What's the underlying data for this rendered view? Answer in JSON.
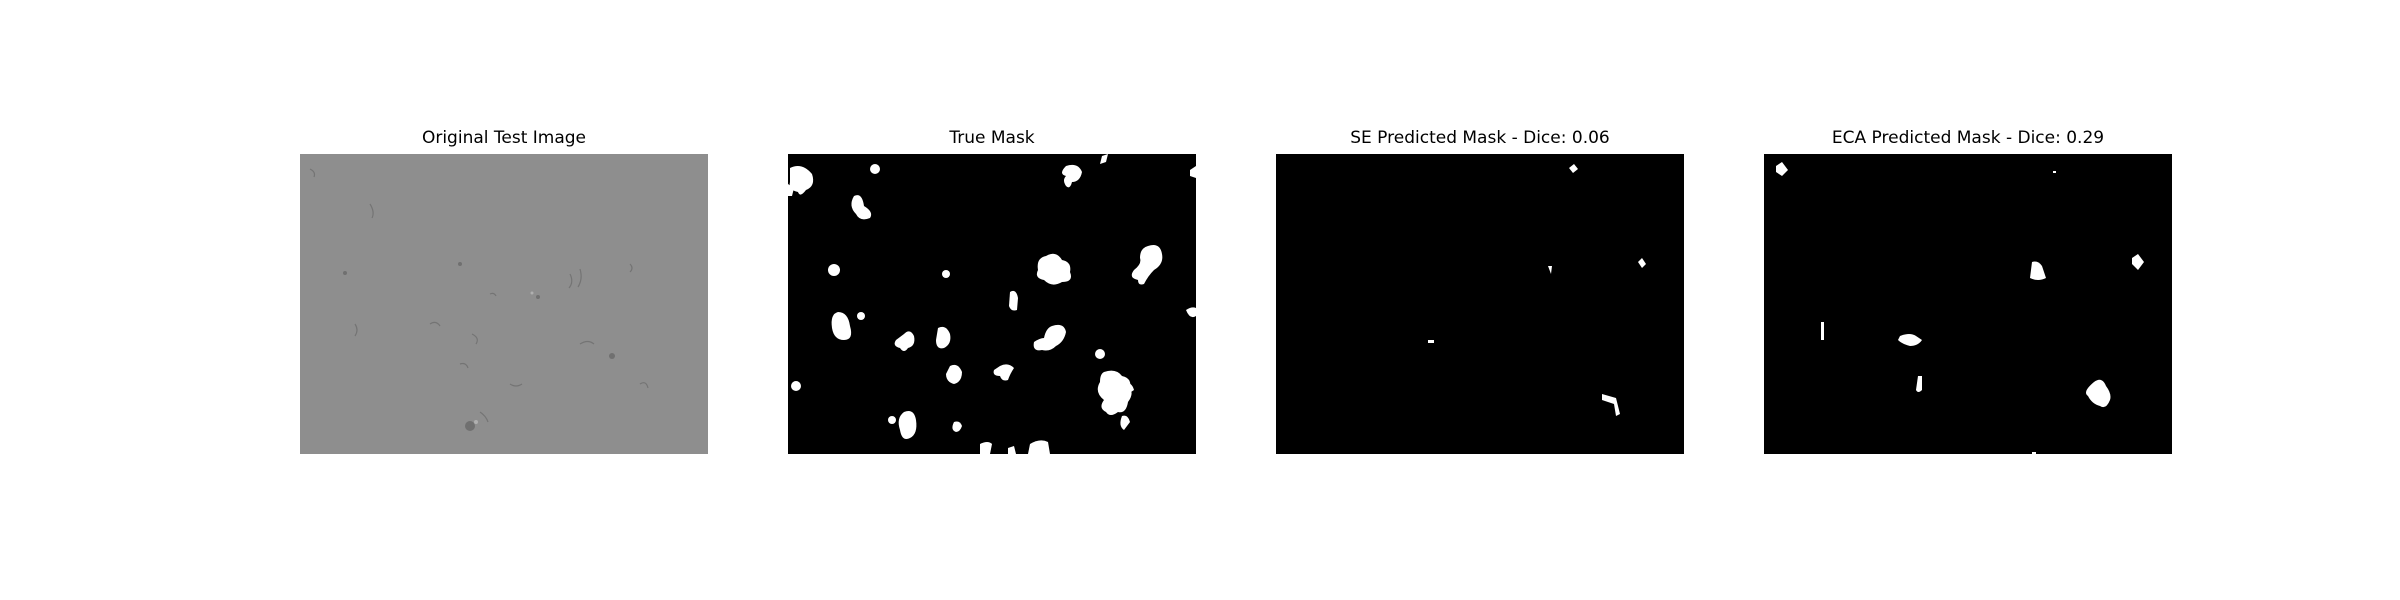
{
  "figure": {
    "panels": [
      {
        "title": "Original Test Image"
      },
      {
        "title": "True Mask"
      },
      {
        "title": "SE Predicted Mask - Dice: 0.06"
      },
      {
        "title": "ECA Predicted Mask - Dice: 0.29"
      }
    ]
  },
  "colors": {
    "background": "#ffffff",
    "micrograph_gray": "#8e8e8e",
    "mask_background": "#000000",
    "mask_foreground": "#ffffff"
  }
}
